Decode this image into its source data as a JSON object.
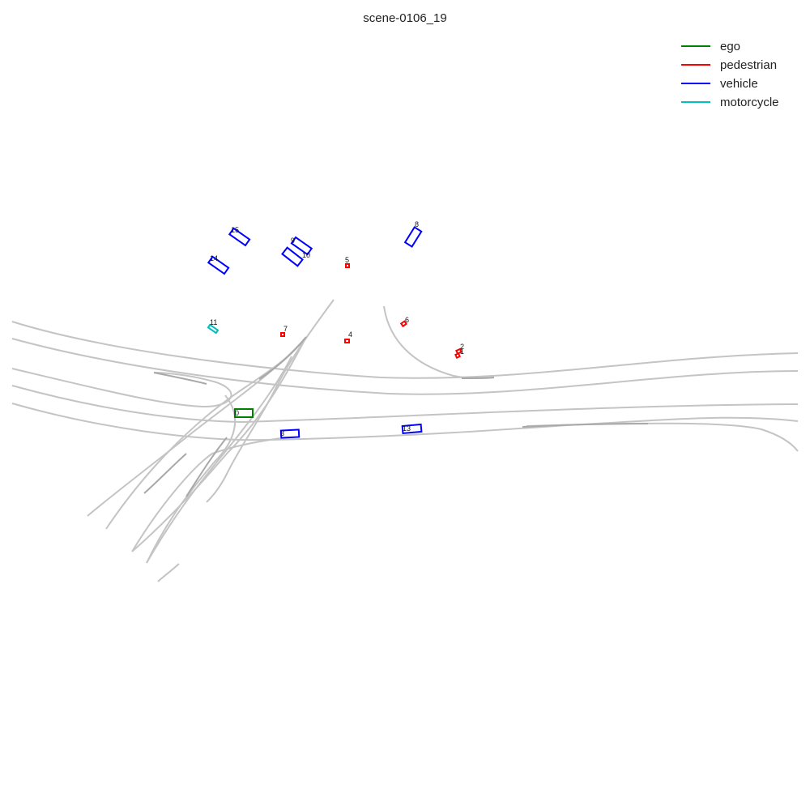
{
  "title": "scene-0106_19",
  "legend": [
    {
      "label": "ego",
      "color": "#008000"
    },
    {
      "label": "pedestrian",
      "color": "#ff0000"
    },
    {
      "label": "vehicle",
      "color": "#0000ff"
    },
    {
      "label": "motorcycle",
      "color": "#00bfbf"
    }
  ],
  "agents": [
    {
      "id": "0",
      "category": "ego"
    },
    {
      "id": "2",
      "category": "pedestrian"
    },
    {
      "id": "1",
      "category": "pedestrian"
    },
    {
      "id": "4",
      "category": "pedestrian"
    },
    {
      "id": "5",
      "category": "pedestrian"
    },
    {
      "id": "6",
      "category": "pedestrian"
    },
    {
      "id": "7",
      "category": "pedestrian"
    },
    {
      "id": "8",
      "category": "vehicle"
    },
    {
      "id": "9",
      "category": "vehicle"
    },
    {
      "id": "10",
      "category": "vehicle"
    },
    {
      "id": "3",
      "category": "vehicle"
    },
    {
      "id": "13",
      "category": "vehicle"
    },
    {
      "id": "14",
      "category": "vehicle"
    },
    {
      "id": "15",
      "category": "vehicle"
    },
    {
      "id": "11",
      "category": "motorcycle"
    }
  ]
}
